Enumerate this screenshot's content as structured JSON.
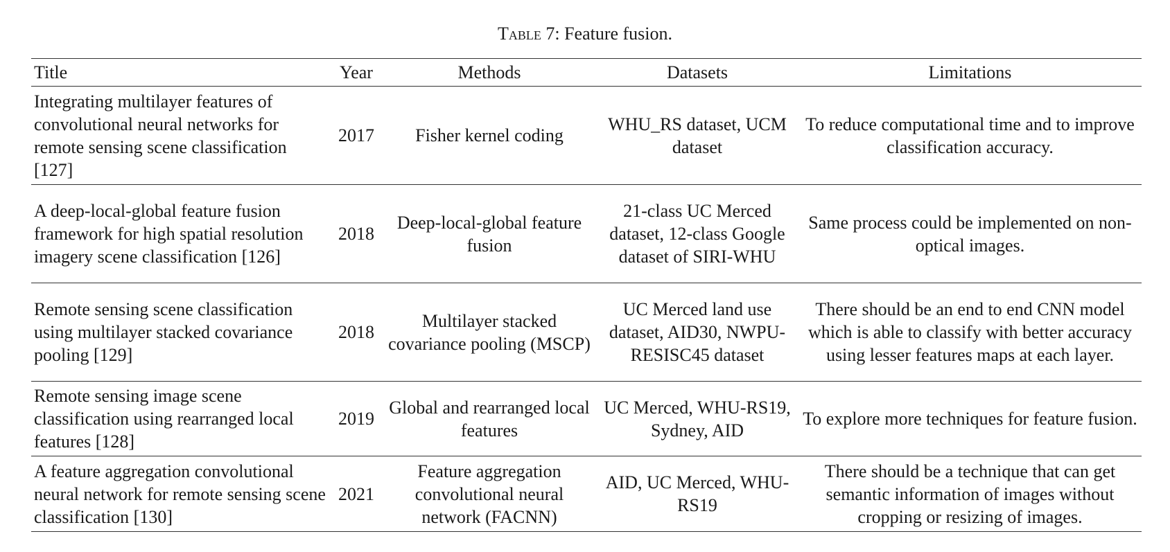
{
  "caption": {
    "label": "Table 7:",
    "text": "Feature fusion."
  },
  "table": {
    "header": [
      "Title",
      "Year",
      "Methods",
      "Datasets",
      "Limitations"
    ],
    "rows": [
      [
        "Integrating multilayer features of convolutional neural networks for remote sensing scene classification [127]",
        "2017",
        "Fisher kernel coding",
        "WHU_RS dataset, UCM dataset",
        "To reduce computational time and to improve classification accuracy."
      ],
      [
        "A deep-local-global feature fusion framework for high spatial resolution imagery scene classification [126]",
        "2018",
        "Deep-local-global feature fusion",
        "21-class UC Merced dataset, 12-class Google dataset of SIRI-WHU",
        "Same process could be implemented on non-optical images."
      ],
      [
        "Remote sensing scene classification using multilayer stacked covariance pooling [129]",
        "2018",
        "Multilayer stacked covariance pooling (MSCP)",
        "UC Merced land use dataset, AID30, NWPU-RESISC45 dataset",
        "There should be an end to end CNN model which is able to classify with better accuracy using lesser features maps at each layer."
      ],
      [
        "Remote sensing image scene classification using rearranged local features [128]",
        "2019",
        "Global and rearranged local features",
        "UC Merced, WHU-RS19, Sydney, AID",
        "To explore more techniques for feature fusion."
      ],
      [
        "A feature aggregation convolutional neural network for remote sensing scene classification [130]",
        "2021",
        "Feature aggregation convolutional neural network (FACNN)",
        "AID, UC Merced, WHU-RS19",
        "There should be a technique that can get semantic information of images without cropping or resizing of images."
      ]
    ]
  }
}
